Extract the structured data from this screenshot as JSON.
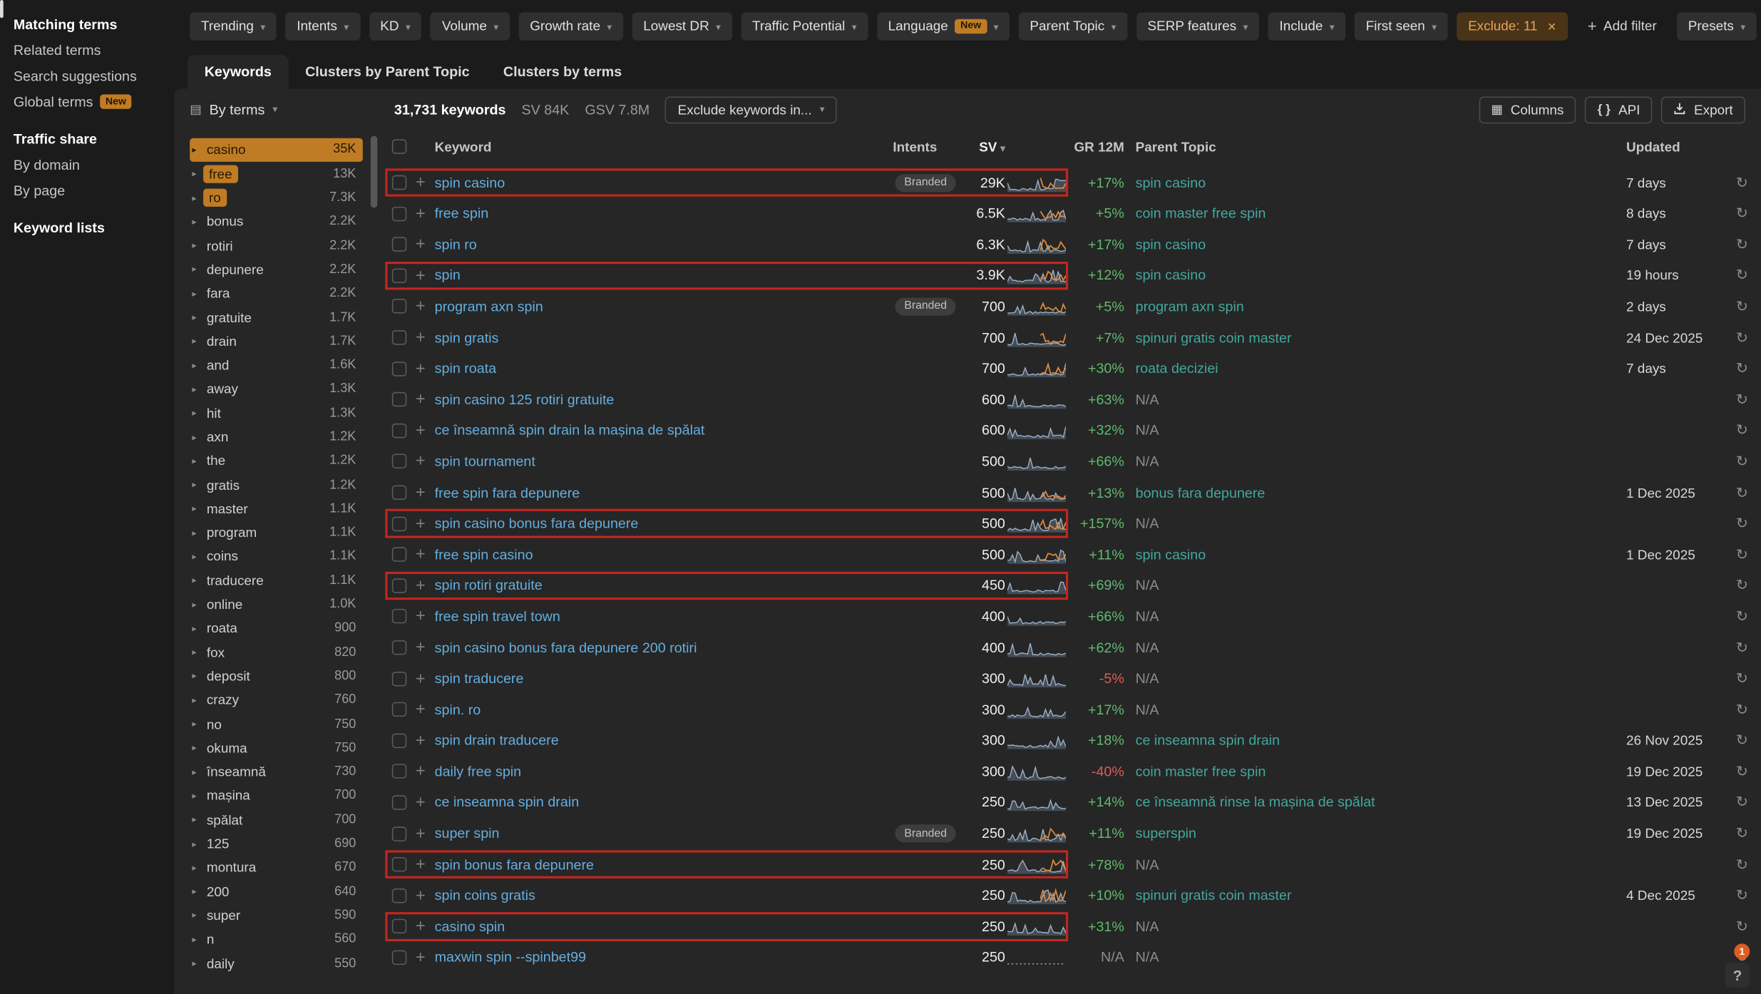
{
  "colors": {
    "bg": "#1b1b1b",
    "panel": "#262626",
    "orange": "#c07c24",
    "link": "#64aede",
    "teal": "#43a79e",
    "green": "#5fba6e",
    "red": "#e05b55",
    "annotate": "#c3261f"
  },
  "icons": {
    "caret_down": "▾",
    "close": "×",
    "refresh": "↻",
    "facet_caret": "▸",
    "plus": "+",
    "help": "?",
    "columns": "▦",
    "by_terms": "▤",
    "api_braces": "{ }",
    "sort_desc": "▾"
  },
  "sidebar": {
    "items": [
      {
        "label": "Matching terms",
        "active": true
      },
      {
        "label": "Related terms"
      },
      {
        "label": "Search suggestions"
      },
      {
        "label": "Global terms",
        "badge": "New"
      }
    ],
    "sections": [
      {
        "heading": "Traffic share",
        "items": [
          "By domain",
          "By page"
        ]
      },
      {
        "heading": "Keyword lists",
        "items": []
      }
    ]
  },
  "filters": {
    "dropdowns": [
      {
        "label": "Trending"
      },
      {
        "label": "Intents"
      },
      {
        "label": "KD"
      },
      {
        "label": "Volume"
      },
      {
        "label": "Growth rate"
      },
      {
        "label": "Lowest DR"
      },
      {
        "label": "Traffic Potential"
      },
      {
        "label": "Language",
        "badge": "New"
      },
      {
        "label": "Parent Topic"
      },
      {
        "label": "SERP features"
      },
      {
        "label": "Include"
      },
      {
        "label": "First seen"
      }
    ],
    "active_filter": {
      "label": "Exclude: 11"
    },
    "add_filter_label": "Add filter",
    "presets_label": "Presets"
  },
  "tabs": {
    "active_index": 0,
    "items": [
      "Keywords",
      "Clusters by Parent Topic",
      "Clusters by terms"
    ]
  },
  "toolbar": {
    "group_by": "By terms",
    "keywords_count": "31,731 keywords",
    "sv_total": "SV 84K",
    "gsv_total": "GSV 7.8M",
    "exclude_btn": "Exclude keywords in...",
    "columns_label": "Columns",
    "api_label": "API",
    "export_label": "Export"
  },
  "facets": {
    "items": [
      {
        "term": "casino",
        "count": "35K",
        "selected": "row"
      },
      {
        "term": "free",
        "count": "13K",
        "selected": "chip"
      },
      {
        "term": "ro",
        "count": "7.3K",
        "selected": "chip"
      },
      {
        "term": "bonus",
        "count": "2.2K"
      },
      {
        "term": "rotiri",
        "count": "2.2K"
      },
      {
        "term": "depunere",
        "count": "2.2K"
      },
      {
        "term": "fara",
        "count": "2.2K"
      },
      {
        "term": "gratuite",
        "count": "1.7K"
      },
      {
        "term": "drain",
        "count": "1.7K"
      },
      {
        "term": "and",
        "count": "1.6K"
      },
      {
        "term": "away",
        "count": "1.3K"
      },
      {
        "term": "hit",
        "count": "1.3K"
      },
      {
        "term": "axn",
        "count": "1.2K"
      },
      {
        "term": "the",
        "count": "1.2K"
      },
      {
        "term": "gratis",
        "count": "1.2K"
      },
      {
        "term": "master",
        "count": "1.1K"
      },
      {
        "term": "program",
        "count": "1.1K"
      },
      {
        "term": "coins",
        "count": "1.1K"
      },
      {
        "term": "traducere",
        "count": "1.1K"
      },
      {
        "term": "online",
        "count": "1.0K"
      },
      {
        "term": "roata",
        "count": "900"
      },
      {
        "term": "fox",
        "count": "820"
      },
      {
        "term": "deposit",
        "count": "800"
      },
      {
        "term": "crazy",
        "count": "760"
      },
      {
        "term": "no",
        "count": "750"
      },
      {
        "term": "okuma",
        "count": "750"
      },
      {
        "term": "înseamnă",
        "count": "730"
      },
      {
        "term": "mașina",
        "count": "700"
      },
      {
        "term": "spălat",
        "count": "700"
      },
      {
        "term": "125",
        "count": "690"
      },
      {
        "term": "montura",
        "count": "670"
      },
      {
        "term": "200",
        "count": "640"
      },
      {
        "term": "super",
        "count": "590"
      },
      {
        "term": "n",
        "count": "560"
      },
      {
        "term": "daily",
        "count": "550"
      }
    ]
  },
  "table": {
    "branded_label": "Branded",
    "headers": {
      "keyword": "Keyword",
      "intents": "Intents",
      "sv": "SV",
      "gr": "GR 12M",
      "parent": "Parent Topic",
      "updated": "Updated"
    },
    "rows": [
      {
        "keyword": "spin casino",
        "branded": true,
        "sv": "29K",
        "gr": "+17%",
        "gr_state": "pos",
        "parent": "spin casino",
        "updated": "7 days",
        "annotated": true,
        "spark_orange": true
      },
      {
        "keyword": "free spin",
        "sv": "6.5K",
        "gr": "+5%",
        "gr_state": "pos",
        "parent": "coin master free spin",
        "updated": "8 days",
        "spark_orange": true
      },
      {
        "keyword": "spin ro",
        "sv": "6.3K",
        "gr": "+17%",
        "gr_state": "pos",
        "parent": "spin casino",
        "updated": "7 days",
        "spark_orange": true
      },
      {
        "keyword": "spin",
        "sv": "3.9K",
        "gr": "+12%",
        "gr_state": "pos",
        "parent": "spin casino",
        "updated": "19 hours",
        "annotated": true,
        "spark_orange": true
      },
      {
        "keyword": "program axn spin",
        "branded": true,
        "sv": "700",
        "gr": "+5%",
        "gr_state": "pos",
        "parent": "program axn spin",
        "updated": "2 days",
        "spark_orange": true
      },
      {
        "keyword": "spin gratis",
        "sv": "700",
        "gr": "+7%",
        "gr_state": "pos",
        "parent": "spinuri gratis coin master",
        "updated": "24 Dec 2025",
        "spark_orange": true
      },
      {
        "keyword": "spin roata",
        "sv": "700",
        "gr": "+30%",
        "gr_state": "pos",
        "parent": "roata deciziei",
        "updated": "7 days",
        "spark_orange": true
      },
      {
        "keyword": "spin casino 125 rotiri gratuite",
        "sv": "600",
        "gr": "+63%",
        "gr_state": "pos",
        "parent": "N/A",
        "updated": ""
      },
      {
        "keyword": "ce înseamnă spin drain la mașina de spălat",
        "sv": "600",
        "gr": "+32%",
        "gr_state": "pos",
        "parent": "N/A",
        "updated": ""
      },
      {
        "keyword": "spin tournament",
        "sv": "500",
        "gr": "+66%",
        "gr_state": "pos",
        "parent": "N/A",
        "updated": ""
      },
      {
        "keyword": "free spin fara depunere",
        "sv": "500",
        "gr": "+13%",
        "gr_state": "pos",
        "parent": "bonus fara depunere",
        "updated": "1 Dec 2025",
        "spark_orange": true
      },
      {
        "keyword": "spin casino bonus fara depunere",
        "sv": "500",
        "gr": "+157%",
        "gr_state": "pos",
        "parent": "N/A",
        "updated": "",
        "annotated": true,
        "spark_orange": true
      },
      {
        "keyword": "free spin casino",
        "sv": "500",
        "gr": "+11%",
        "gr_state": "pos",
        "parent": "spin casino",
        "updated": "1 Dec 2025",
        "spark_orange": true
      },
      {
        "keyword": "spin rotiri gratuite",
        "sv": "450",
        "gr": "+69%",
        "gr_state": "pos",
        "parent": "N/A",
        "updated": "",
        "annotated": true
      },
      {
        "keyword": "free spin travel town",
        "sv": "400",
        "gr": "+66%",
        "gr_state": "pos",
        "parent": "N/A",
        "updated": ""
      },
      {
        "keyword": "spin casino bonus fara depunere 200 rotiri",
        "sv": "400",
        "gr": "+62%",
        "gr_state": "pos",
        "parent": "N/A",
        "updated": ""
      },
      {
        "keyword": "spin traducere",
        "sv": "300",
        "gr": "-5%",
        "gr_state": "neg",
        "parent": "N/A",
        "updated": ""
      },
      {
        "keyword": "spin. ro",
        "sv": "300",
        "gr": "+17%",
        "gr_state": "pos",
        "parent": "N/A",
        "updated": ""
      },
      {
        "keyword": "spin drain traducere",
        "sv": "300",
        "gr": "+18%",
        "gr_state": "pos",
        "parent": "ce inseamna spin drain",
        "updated": "26 Nov 2025"
      },
      {
        "keyword": "daily free spin",
        "sv": "300",
        "gr": "-40%",
        "gr_state": "neg",
        "parent": "coin master free spin",
        "updated": "19 Dec 2025"
      },
      {
        "keyword": "ce inseamna spin drain",
        "sv": "250",
        "gr": "+14%",
        "gr_state": "pos",
        "parent": "ce înseamnă rinse la mașina de spălat",
        "updated": "13 Dec 2025"
      },
      {
        "keyword": "super spin",
        "branded": true,
        "sv": "250",
        "gr": "+11%",
        "gr_state": "pos",
        "parent": "superspin",
        "updated": "19 Dec 2025",
        "spark_orange": true
      },
      {
        "keyword": "spin bonus fara depunere",
        "sv": "250",
        "gr": "+78%",
        "gr_state": "pos",
        "parent": "N/A",
        "updated": "",
        "annotated": true,
        "spark_orange": true
      },
      {
        "keyword": "spin coins gratis",
        "sv": "250",
        "gr": "+10%",
        "gr_state": "pos",
        "parent": "spinuri gratis coin master",
        "updated": "4 Dec 2025",
        "spark_orange": true
      },
      {
        "keyword": "casino spin",
        "sv": "250",
        "gr": "+31%",
        "gr_state": "pos",
        "parent": "N/A",
        "updated": "",
        "annotated": true
      },
      {
        "keyword": "maxwin spin --spinbet99",
        "sv": "250",
        "gr": "N/A",
        "gr_state": "na",
        "parent": "N/A",
        "updated": "",
        "spark_flat": true
      }
    ]
  },
  "help": {
    "button": "?",
    "notification": "1"
  }
}
